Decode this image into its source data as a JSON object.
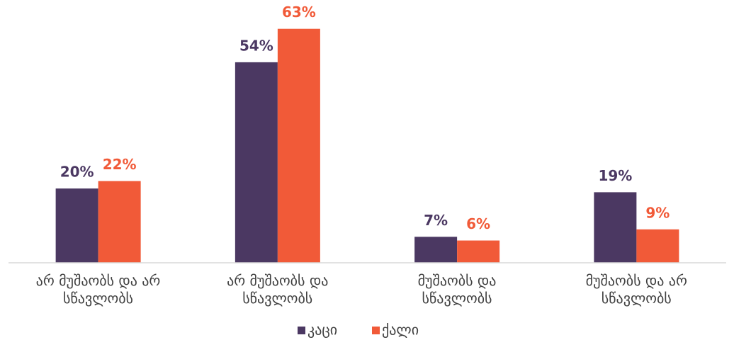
{
  "chart_data": {
    "type": "bar",
    "categories": [
      "არ მუშაობს და არ\nსწავლობს",
      "არ მუშაობს და\nსწავლობს",
      "მუშაობს და\nსწავლობს",
      "მუშაობს და არ\nსწავლობს"
    ],
    "series": [
      {
        "name": "კაცი",
        "color": "#4b3862",
        "values": [
          20,
          54,
          7,
          19
        ],
        "value_labels": [
          "20%",
          "54%",
          "7%",
          "19%"
        ]
      },
      {
        "name": "ქალი",
        "color": "#f15a38",
        "values": [
          22,
          63,
          6,
          9
        ],
        "value_labels": [
          "22%",
          "63%",
          "6%",
          "9%"
        ]
      }
    ],
    "ylim": [
      0,
      70
    ],
    "legend": "bottom"
  }
}
